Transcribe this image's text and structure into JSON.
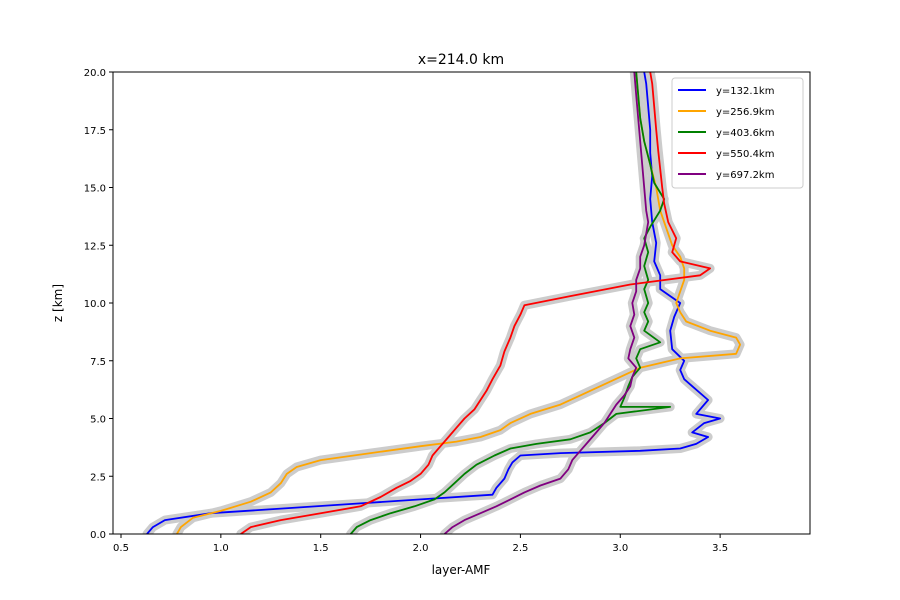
{
  "chart_data": {
    "type": "line",
    "title": "x=214.0 km",
    "xlabel": "layer-AMF",
    "ylabel": "z [km]",
    "xlim": [
      0.46,
      3.95
    ],
    "ylim": [
      0,
      20
    ],
    "xticks": [
      0.5,
      1.0,
      1.5,
      2.0,
      2.5,
      3.0,
      3.5
    ],
    "xtick_labels": [
      "0.5",
      "1.0",
      "1.5",
      "2.0",
      "2.5",
      "3.0",
      "3.5"
    ],
    "yticks": [
      0.0,
      2.5,
      5.0,
      7.5,
      10.0,
      12.5,
      15.0,
      17.5,
      20.0
    ],
    "ytick_labels": [
      "0.0",
      "2.5",
      "5.0",
      "7.5",
      "10.0",
      "12.5",
      "15.0",
      "17.5",
      "20.0"
    ],
    "grid": false,
    "legend_position": "upper right",
    "uncertainty_band_color": "#cccccc",
    "series": [
      {
        "name": "y=132.1km",
        "color": "#0000ff",
        "points": [
          [
            0.63,
            0
          ],
          [
            0.66,
            0.3
          ],
          [
            0.72,
            0.6
          ],
          [
            0.95,
            0.9
          ],
          [
            1.3,
            1.1
          ],
          [
            1.65,
            1.3
          ],
          [
            2.0,
            1.5
          ],
          [
            2.36,
            1.7
          ],
          [
            2.38,
            2.0
          ],
          [
            2.42,
            2.4
          ],
          [
            2.44,
            2.8
          ],
          [
            2.46,
            3.1
          ],
          [
            2.5,
            3.4
          ],
          [
            2.7,
            3.5
          ],
          [
            3.1,
            3.6
          ],
          [
            3.3,
            3.7
          ],
          [
            3.38,
            3.9
          ],
          [
            3.44,
            4.2
          ],
          [
            3.36,
            4.4
          ],
          [
            3.42,
            4.8
          ],
          [
            3.5,
            5.0
          ],
          [
            3.38,
            5.2
          ],
          [
            3.44,
            5.8
          ],
          [
            3.36,
            6.4
          ],
          [
            3.32,
            6.7
          ],
          [
            3.3,
            7.1
          ],
          [
            3.32,
            7.5
          ],
          [
            3.26,
            8.0
          ],
          [
            3.25,
            8.8
          ],
          [
            3.27,
            9.4
          ],
          [
            3.3,
            10.0
          ],
          [
            3.25,
            10.3
          ],
          [
            3.2,
            10.6
          ],
          [
            3.2,
            11.2
          ],
          [
            3.17,
            11.8
          ],
          [
            3.18,
            12.6
          ],
          [
            3.16,
            13.5
          ],
          [
            3.15,
            14.5
          ],
          [
            3.16,
            15.5
          ],
          [
            3.15,
            16.5
          ],
          [
            3.15,
            17.5
          ],
          [
            3.14,
            18.5
          ],
          [
            3.13,
            19.5
          ],
          [
            3.12,
            20
          ]
        ]
      },
      {
        "name": "y=256.9km",
        "color": "#ffa500",
        "points": [
          [
            0.78,
            0
          ],
          [
            0.8,
            0.3
          ],
          [
            0.86,
            0.7
          ],
          [
            1.0,
            1.0
          ],
          [
            1.15,
            1.4
          ],
          [
            1.25,
            1.8
          ],
          [
            1.3,
            2.2
          ],
          [
            1.33,
            2.6
          ],
          [
            1.38,
            2.9
          ],
          [
            1.5,
            3.2
          ],
          [
            1.75,
            3.5
          ],
          [
            2.0,
            3.8
          ],
          [
            2.18,
            4.0
          ],
          [
            2.3,
            4.2
          ],
          [
            2.4,
            4.5
          ],
          [
            2.45,
            4.8
          ],
          [
            2.55,
            5.2
          ],
          [
            2.7,
            5.6
          ],
          [
            2.8,
            6.0
          ],
          [
            2.9,
            6.4
          ],
          [
            3.0,
            6.8
          ],
          [
            3.1,
            7.2
          ],
          [
            3.3,
            7.6
          ],
          [
            3.58,
            7.8
          ],
          [
            3.6,
            8.2
          ],
          [
            3.58,
            8.5
          ],
          [
            3.45,
            8.8
          ],
          [
            3.33,
            9.2
          ],
          [
            3.3,
            9.6
          ],
          [
            3.28,
            10.0
          ],
          [
            3.3,
            10.5
          ],
          [
            3.32,
            11.0
          ],
          [
            3.32,
            11.5
          ],
          [
            3.3,
            12.0
          ],
          [
            3.26,
            12.5
          ],
          [
            3.24,
            13.0
          ],
          [
            3.2,
            14.0
          ],
          [
            3.18,
            15.0
          ],
          [
            3.15,
            16.0
          ],
          [
            3.12,
            17.0
          ],
          [
            3.1,
            18.0
          ],
          [
            3.09,
            19.0
          ],
          [
            3.08,
            20
          ]
        ]
      },
      {
        "name": "y=403.6km",
        "color": "#008000",
        "points": [
          [
            1.65,
            0
          ],
          [
            1.68,
            0.3
          ],
          [
            1.75,
            0.6
          ],
          [
            1.85,
            0.9
          ],
          [
            1.97,
            1.2
          ],
          [
            2.07,
            1.5
          ],
          [
            2.12,
            1.8
          ],
          [
            2.17,
            2.2
          ],
          [
            2.22,
            2.6
          ],
          [
            2.28,
            3.0
          ],
          [
            2.37,
            3.4
          ],
          [
            2.45,
            3.7
          ],
          [
            2.58,
            3.9
          ],
          [
            2.75,
            4.1
          ],
          [
            2.85,
            4.4
          ],
          [
            2.92,
            4.8
          ],
          [
            2.98,
            5.2
          ],
          [
            3.25,
            5.5
          ],
          [
            3.0,
            5.5
          ],
          [
            3.02,
            5.9
          ],
          [
            3.04,
            6.4
          ],
          [
            3.06,
            6.8
          ],
          [
            3.1,
            7.2
          ],
          [
            3.08,
            7.6
          ],
          [
            3.1,
            8.0
          ],
          [
            3.2,
            8.3
          ],
          [
            3.12,
            8.8
          ],
          [
            3.14,
            9.2
          ],
          [
            3.12,
            9.6
          ],
          [
            3.14,
            10.0
          ],
          [
            3.12,
            10.6
          ],
          [
            3.14,
            11.0
          ],
          [
            3.12,
            11.6
          ],
          [
            3.14,
            12.2
          ],
          [
            3.12,
            12.8
          ],
          [
            3.15,
            13.3
          ],
          [
            3.2,
            14.0
          ],
          [
            3.22,
            14.5
          ],
          [
            3.17,
            15.2
          ],
          [
            3.15,
            16.0
          ],
          [
            3.12,
            17.0
          ],
          [
            3.1,
            18.0
          ],
          [
            3.09,
            19.0
          ],
          [
            3.08,
            20
          ]
        ]
      },
      {
        "name": "y=550.4km",
        "color": "#ff0000",
        "points": [
          [
            1.1,
            0
          ],
          [
            1.15,
            0.3
          ],
          [
            1.3,
            0.6
          ],
          [
            1.5,
            0.9
          ],
          [
            1.7,
            1.2
          ],
          [
            1.8,
            1.6
          ],
          [
            1.88,
            2.0
          ],
          [
            1.95,
            2.3
          ],
          [
            2.0,
            2.6
          ],
          [
            2.04,
            3.0
          ],
          [
            2.06,
            3.4
          ],
          [
            2.1,
            3.8
          ],
          [
            2.14,
            4.2
          ],
          [
            2.18,
            4.6
          ],
          [
            2.22,
            5.0
          ],
          [
            2.27,
            5.4
          ],
          [
            2.3,
            5.8
          ],
          [
            2.33,
            6.2
          ],
          [
            2.36,
            6.7
          ],
          [
            2.4,
            7.3
          ],
          [
            2.42,
            7.9
          ],
          [
            2.45,
            8.5
          ],
          [
            2.47,
            9.0
          ],
          [
            2.5,
            9.5
          ],
          [
            2.52,
            9.9
          ],
          [
            2.75,
            10.3
          ],
          [
            3.05,
            10.8
          ],
          [
            3.4,
            11.2
          ],
          [
            3.45,
            11.5
          ],
          [
            3.3,
            11.8
          ],
          [
            3.26,
            12.2
          ],
          [
            3.28,
            12.8
          ],
          [
            3.24,
            13.5
          ],
          [
            3.22,
            14.3
          ],
          [
            3.21,
            15.0
          ],
          [
            3.2,
            15.8
          ],
          [
            3.19,
            16.6
          ],
          [
            3.18,
            17.5
          ],
          [
            3.17,
            18.5
          ],
          [
            3.16,
            19.5
          ],
          [
            3.15,
            20
          ]
        ]
      },
      {
        "name": "y=697.2km",
        "color": "#800080",
        "points": [
          [
            2.12,
            0
          ],
          [
            2.16,
            0.3
          ],
          [
            2.22,
            0.6
          ],
          [
            2.3,
            0.9
          ],
          [
            2.38,
            1.2
          ],
          [
            2.45,
            1.5
          ],
          [
            2.52,
            1.8
          ],
          [
            2.6,
            2.1
          ],
          [
            2.7,
            2.4
          ],
          [
            2.74,
            2.8
          ],
          [
            2.76,
            3.2
          ],
          [
            2.8,
            3.6
          ],
          [
            2.84,
            4.0
          ],
          [
            2.88,
            4.4
          ],
          [
            2.92,
            4.8
          ],
          [
            2.95,
            5.2
          ],
          [
            2.98,
            5.6
          ],
          [
            3.02,
            6.0
          ],
          [
            3.05,
            6.4
          ],
          [
            3.06,
            6.8
          ],
          [
            3.08,
            7.2
          ],
          [
            3.04,
            7.6
          ],
          [
            3.05,
            8.0
          ],
          [
            3.07,
            8.5
          ],
          [
            3.05,
            9.0
          ],
          [
            3.07,
            9.5
          ],
          [
            3.06,
            10.0
          ],
          [
            3.08,
            10.5
          ],
          [
            3.08,
            11.0
          ],
          [
            3.1,
            11.5
          ],
          [
            3.1,
            12.0
          ],
          [
            3.12,
            12.5
          ],
          [
            3.13,
            13.0
          ],
          [
            3.14,
            13.5
          ],
          [
            3.13,
            14.0
          ],
          [
            3.12,
            15.0
          ],
          [
            3.11,
            16.0
          ],
          [
            3.1,
            17.0
          ],
          [
            3.09,
            18.0
          ],
          [
            3.08,
            19.0
          ],
          [
            3.07,
            20
          ]
        ]
      }
    ]
  }
}
